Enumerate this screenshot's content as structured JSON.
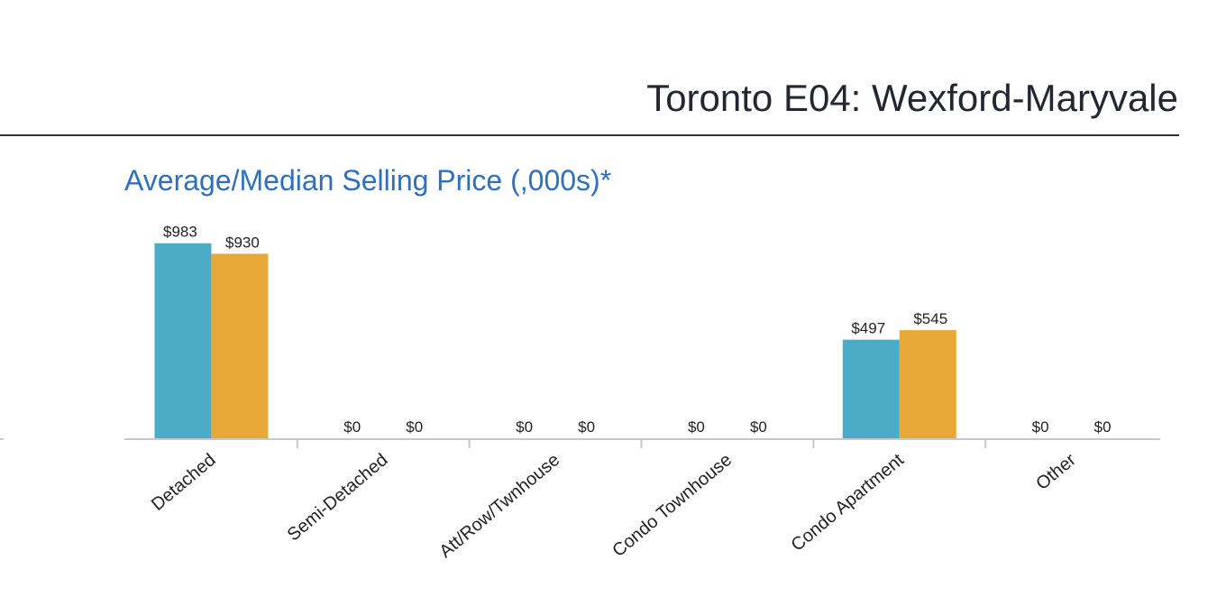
{
  "header": {
    "title": "Toronto E04: Wexford-Maryvale"
  },
  "chart_data": {
    "type": "bar",
    "title": "Average/Median Selling Price (,000s)*",
    "categories": [
      "Detached",
      "Semi-Detached",
      "Att/Row/Twnhouse",
      "Condo Townhouse",
      "Condo Apartment",
      "Other"
    ],
    "series": [
      {
        "color": "#4bacc6",
        "values": [
          983,
          0,
          0,
          0,
          497,
          0
        ],
        "value_labels": [
          "$983",
          "$0",
          "$0",
          "$0",
          "$497",
          "$0"
        ]
      },
      {
        "color": "#e8a838",
        "values": [
          930,
          0,
          0,
          0,
          545,
          0
        ],
        "value_labels": [
          "$930",
          "$0",
          "$0",
          "$0",
          "$545",
          "$0"
        ]
      }
    ],
    "ylim": [
      0,
      1000
    ]
  }
}
